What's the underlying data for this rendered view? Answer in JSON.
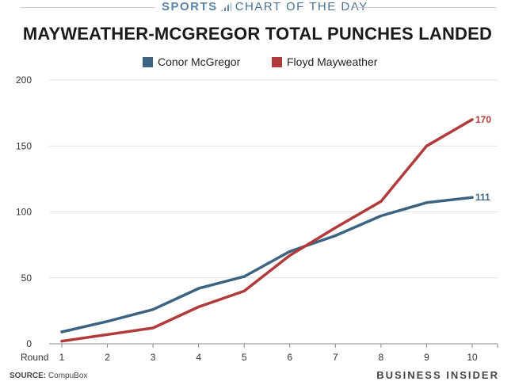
{
  "header": {
    "brand": "SPORTS",
    "kicker": "CHART OF THE DAY"
  },
  "footer": {
    "source_label": "SOURCE:",
    "source_value": "CompuBox",
    "brand": "BUSINESS INSIDER"
  },
  "colors": {
    "mcgregor": "#3c6482",
    "mayweather": "#b13a3a",
    "grid": "#e2e2e2",
    "axis": "#888888",
    "tick_text": "#333333"
  },
  "chart_data": {
    "type": "line",
    "title": "MAYWEATHER-MCGREGOR TOTAL PUNCHES LANDED",
    "xlabel": "Round",
    "ylabel": "",
    "x": [
      "1",
      "2",
      "3",
      "4",
      "5",
      "6",
      "7",
      "8",
      "9",
      "10"
    ],
    "ylim": [
      0,
      200
    ],
    "yticks": [
      "0",
      "50",
      "100",
      "150",
      "200"
    ],
    "grid": true,
    "legend": "top-center",
    "series": [
      {
        "name": "Conor McGregor",
        "color": "#3c6482",
        "values": [
          9,
          17,
          26,
          42,
          51,
          70,
          82,
          97,
          107,
          111
        ],
        "end_label": "111"
      },
      {
        "name": "Floyd Mayweather",
        "color": "#b13a3a",
        "values": [
          2,
          7,
          12,
          28,
          40,
          67,
          88,
          108,
          150,
          170
        ],
        "end_label": "170"
      }
    ]
  }
}
